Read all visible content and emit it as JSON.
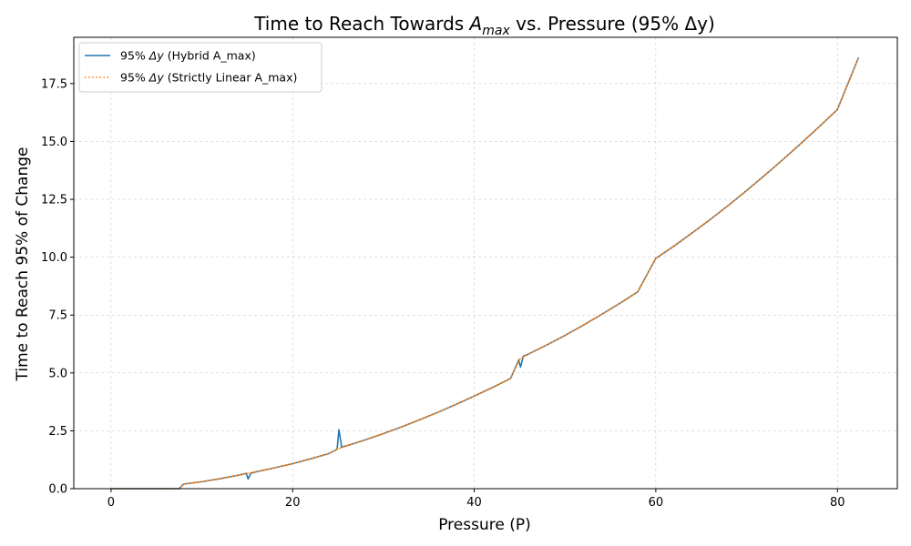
{
  "chart_data": {
    "type": "line",
    "title_prefix": "Time to Reach Towards ",
    "title_math": "A",
    "title_math_sub": "max",
    "title_suffix": " vs. Pressure (95% Δy)",
    "xlabel": "Pressure (P)",
    "ylabel": "Time to Reach 95% of Change",
    "xlim": [
      -4.1,
      86.6
    ],
    "ylim": [
      0,
      19.5
    ],
    "xticks": [
      0,
      20,
      40,
      60,
      80
    ],
    "yticks": [
      0.0,
      2.5,
      5.0,
      7.5,
      10.0,
      12.5,
      15.0,
      17.5
    ],
    "xtick_labels": [
      "0",
      "20",
      "40",
      "60",
      "80"
    ],
    "ytick_labels": [
      "0.0",
      "2.5",
      "5.0",
      "7.5",
      "10.0",
      "12.5",
      "15.0",
      "17.5"
    ],
    "grid": true,
    "legend_placement": "top-left",
    "series": [
      {
        "name_prefix": "95% ",
        "name_math": "Δy",
        "name_suffix": " (Hybrid A_max)",
        "color": "#1f77b4",
        "style": "solid",
        "points": [
          [
            0,
            0
          ],
          [
            7.5,
            0
          ],
          [
            8,
            0.2
          ],
          [
            10,
            0.3
          ],
          [
            12,
            0.43
          ],
          [
            14,
            0.58
          ],
          [
            14.9,
            0.66
          ],
          [
            15.1,
            0.42
          ],
          [
            15.4,
            0.67
          ],
          [
            16,
            0.73
          ],
          [
            18,
            0.9
          ],
          [
            20,
            1.08
          ],
          [
            22,
            1.29
          ],
          [
            24,
            1.52
          ],
          [
            24.9,
            1.7
          ],
          [
            25.1,
            2.55
          ],
          [
            25.4,
            1.8
          ],
          [
            26,
            1.86
          ],
          [
            28,
            2.11
          ],
          [
            30,
            2.38
          ],
          [
            32,
            2.67
          ],
          [
            34,
            2.98
          ],
          [
            36,
            3.3
          ],
          [
            38,
            3.64
          ],
          [
            40,
            4.0
          ],
          [
            42,
            4.37
          ],
          [
            44,
            4.76
          ],
          [
            44.9,
            5.55
          ],
          [
            45.1,
            5.25
          ],
          [
            45.4,
            5.72
          ],
          [
            46,
            5.82
          ],
          [
            48,
            6.21
          ],
          [
            50,
            6.62
          ],
          [
            52,
            7.06
          ],
          [
            54,
            7.52
          ],
          [
            56,
            8.0
          ],
          [
            58,
            8.5
          ],
          [
            60,
            9.95
          ],
          [
            62,
            10.48
          ],
          [
            64,
            11.05
          ],
          [
            66,
            11.63
          ],
          [
            68,
            12.24
          ],
          [
            70,
            12.88
          ],
          [
            72,
            13.54
          ],
          [
            74,
            14.22
          ],
          [
            76,
            14.92
          ],
          [
            78,
            15.64
          ],
          [
            80,
            16.38
          ],
          [
            82.3,
            18.6
          ]
        ]
      },
      {
        "name_prefix": "95% ",
        "name_math": "Δy",
        "name_suffix": " (Strictly Linear A_max)",
        "color": "#ff7f0e",
        "style": "dotted",
        "points": [
          [
            0,
            0
          ],
          [
            7.5,
            0
          ],
          [
            8,
            0.2
          ],
          [
            10,
            0.3
          ],
          [
            12,
            0.43
          ],
          [
            14,
            0.58
          ],
          [
            16,
            0.73
          ],
          [
            18,
            0.9
          ],
          [
            20,
            1.08
          ],
          [
            22,
            1.29
          ],
          [
            24,
            1.52
          ],
          [
            25,
            1.72
          ],
          [
            26,
            1.86
          ],
          [
            28,
            2.11
          ],
          [
            30,
            2.38
          ],
          [
            32,
            2.67
          ],
          [
            34,
            2.98
          ],
          [
            36,
            3.3
          ],
          [
            38,
            3.64
          ],
          [
            40,
            4.0
          ],
          [
            42,
            4.37
          ],
          [
            44,
            4.76
          ],
          [
            45,
            5.6
          ],
          [
            46,
            5.82
          ],
          [
            48,
            6.21
          ],
          [
            50,
            6.62
          ],
          [
            52,
            7.06
          ],
          [
            54,
            7.52
          ],
          [
            56,
            8.0
          ],
          [
            58,
            8.5
          ],
          [
            60,
            9.95
          ],
          [
            62,
            10.48
          ],
          [
            64,
            11.05
          ],
          [
            66,
            11.63
          ],
          [
            68,
            12.24
          ],
          [
            70,
            12.88
          ],
          [
            72,
            13.54
          ],
          [
            74,
            14.22
          ],
          [
            76,
            14.92
          ],
          [
            78,
            15.64
          ],
          [
            80,
            16.38
          ],
          [
            82.3,
            18.6
          ]
        ]
      }
    ]
  }
}
